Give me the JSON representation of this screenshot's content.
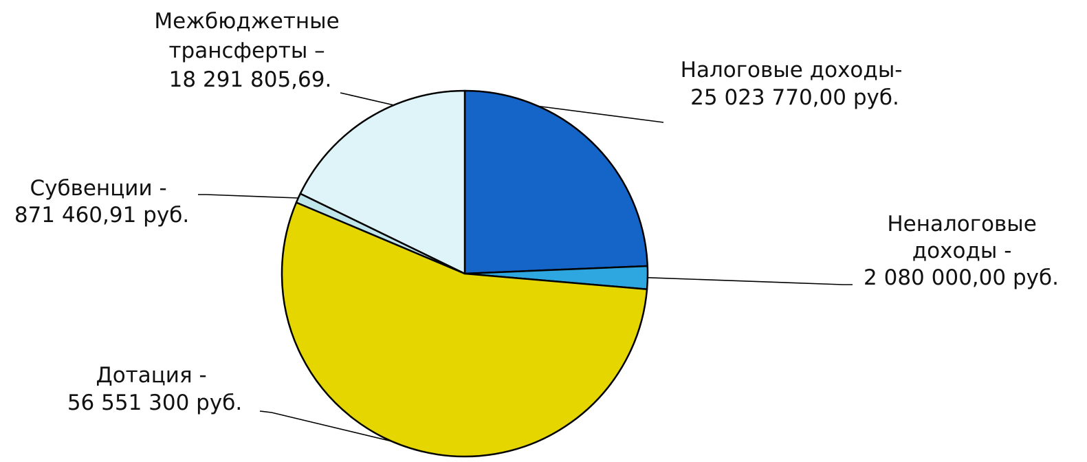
{
  "chart_data": {
    "type": "pie",
    "slices": [
      {
        "label_lines": [
          "Налоговые доходы-",
          "25 023 770,00 руб."
        ],
        "value": 25023770.0,
        "color": "#1565c8"
      },
      {
        "label_lines": [
          "Неналоговые",
          "доходы -",
          "2 080 000,00 руб."
        ],
        "value": 2080000.0,
        "color": "#2ea6e0"
      },
      {
        "label_lines": [
          "Дотация -",
          "56 551 300 руб."
        ],
        "value": 56551300.0,
        "color": "#e5d600"
      },
      {
        "label_lines": [
          "Субвенции -",
          "871 460,91 руб."
        ],
        "value": 871460.91,
        "color": "#bfe4ea"
      },
      {
        "label_lines": [
          "Межбюджетные",
          "трансферты –",
          "18 291 805,69."
        ],
        "value": 18291805.69,
        "color": "#dff4f9"
      }
    ]
  }
}
